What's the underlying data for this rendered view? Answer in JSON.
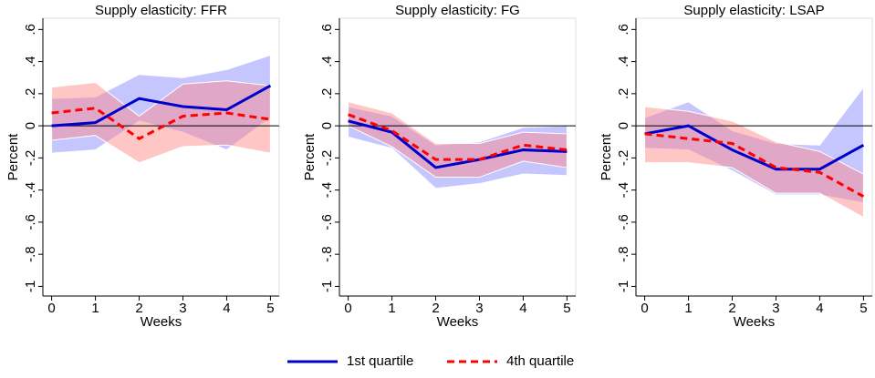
{
  "chart_data": [
    {
      "type": "line",
      "title": "Supply elasticity: FFR",
      "x_label": "Weeks",
      "y_label": "Percent",
      "x": [
        0,
        1,
        2,
        3,
        4,
        5
      ],
      "xlim": [
        -0.2,
        5.2
      ],
      "xticks": [
        0,
        1,
        2,
        3,
        4,
        5
      ],
      "ylim": [
        -1.06,
        0.67
      ],
      "yticks": [
        {
          "value": -1,
          "label": "-1"
        },
        {
          "value": -0.8,
          "label": "-.8"
        },
        {
          "value": -0.6,
          "label": "-.6"
        },
        {
          "value": -0.4,
          "label": "-.4"
        },
        {
          "value": -0.2,
          "label": "-.2"
        },
        0,
        {
          "value": 0.2,
          "label": ".2"
        },
        {
          "value": 0.4,
          "label": ".4"
        },
        {
          "value": 0.6,
          "label": ".6"
        }
      ],
      "hline": 0,
      "series": [
        {
          "name": "1st quartile",
          "color": "#0000cc",
          "band_color": "#8080ff",
          "dash": false,
          "values": [
            0,
            0.02,
            0.17,
            0.12,
            0.1,
            0.25
          ],
          "lower": [
            -0.17,
            -0.15,
            0.03,
            -0.04,
            -0.15,
            0.05
          ],
          "upper": [
            0.17,
            0.18,
            0.32,
            0.3,
            0.35,
            0.44
          ]
        },
        {
          "name": "4th quartile",
          "color": "#ff0000",
          "band_color": "#ff8080",
          "dash": true,
          "values": [
            0.08,
            0.11,
            -0.08,
            0.06,
            0.08,
            0.04
          ],
          "lower": [
            -0.09,
            -0.06,
            -0.23,
            -0.13,
            -0.12,
            -0.17
          ],
          "upper": [
            0.24,
            0.27,
            0.06,
            0.26,
            0.28,
            0.25
          ]
        }
      ]
    },
    {
      "type": "line",
      "title": "Supply elasticity: FG",
      "x_label": "Weeks",
      "y_label": "Percent",
      "x": [
        0,
        1,
        2,
        3,
        4,
        5
      ],
      "xlim": [
        -0.2,
        5.2
      ],
      "xticks": [
        0,
        1,
        2,
        3,
        4,
        5
      ],
      "ylim": [
        -1.06,
        0.67
      ],
      "yticks": [
        {
          "value": -1,
          "label": "-1"
        },
        {
          "value": -0.8,
          "label": "-.8"
        },
        {
          "value": -0.6,
          "label": "-.6"
        },
        {
          "value": -0.4,
          "label": "-.4"
        },
        {
          "value": -0.2,
          "label": "-.2"
        },
        0,
        {
          "value": 0.2,
          "label": ".2"
        },
        {
          "value": 0.4,
          "label": ".4"
        },
        {
          "value": 0.6,
          "label": ".6"
        }
      ],
      "hline": 0,
      "series": [
        {
          "name": "1st quartile",
          "color": "#0000cc",
          "band_color": "#8080ff",
          "dash": false,
          "values": [
            0.03,
            -0.04,
            -0.26,
            -0.21,
            -0.15,
            -0.16
          ],
          "lower": [
            -0.07,
            -0.14,
            -0.39,
            -0.36,
            -0.3,
            -0.31
          ],
          "upper": [
            0.12,
            0.06,
            -0.12,
            -0.1,
            -0.01,
            0.0
          ]
        },
        {
          "name": "4th quartile",
          "color": "#ff0000",
          "band_color": "#ff8080",
          "dash": true,
          "values": [
            0.07,
            -0.03,
            -0.21,
            -0.21,
            -0.12,
            -0.15
          ],
          "lower": [
            0.0,
            -0.13,
            -0.32,
            -0.32,
            -0.22,
            -0.26
          ],
          "upper": [
            0.15,
            0.08,
            -0.11,
            -0.11,
            -0.04,
            -0.05
          ]
        }
      ]
    },
    {
      "type": "line",
      "title": "Supply elasticity: LSAP",
      "x_label": "Weeks",
      "y_label": "Percent",
      "x": [
        0,
        1,
        2,
        3,
        4,
        5
      ],
      "xlim": [
        -0.2,
        5.2
      ],
      "xticks": [
        0,
        1,
        2,
        3,
        4,
        5
      ],
      "ylim": [
        -1.06,
        0.67
      ],
      "yticks": [
        {
          "value": -1,
          "label": "-1"
        },
        {
          "value": -0.8,
          "label": "-.8"
        },
        {
          "value": -0.6,
          "label": "-.6"
        },
        {
          "value": -0.4,
          "label": "-.4"
        },
        {
          "value": -0.2,
          "label": "-.2"
        },
        0,
        {
          "value": 0.2,
          "label": ".2"
        },
        {
          "value": 0.4,
          "label": ".4"
        },
        {
          "value": 0.6,
          "label": ".6"
        }
      ],
      "hline": 0,
      "series": [
        {
          "name": "1st quartile",
          "color": "#0000cc",
          "band_color": "#8080ff",
          "dash": false,
          "values": [
            -0.05,
            0.0,
            -0.15,
            -0.27,
            -0.27,
            -0.12
          ],
          "lower": [
            -0.14,
            -0.15,
            -0.28,
            -0.43,
            -0.43,
            -0.48
          ],
          "upper": [
            0.05,
            0.15,
            -0.03,
            -0.11,
            -0.12,
            0.24
          ]
        },
        {
          "name": "4th quartile",
          "color": "#ff0000",
          "band_color": "#ff8080",
          "dash": true,
          "values": [
            -0.05,
            -0.08,
            -0.11,
            -0.26,
            -0.29,
            -0.44
          ],
          "lower": [
            -0.23,
            -0.23,
            -0.26,
            -0.42,
            -0.42,
            -0.57
          ],
          "upper": [
            0.12,
            0.09,
            0.03,
            -0.1,
            -0.16,
            -0.3
          ]
        }
      ]
    }
  ]
}
